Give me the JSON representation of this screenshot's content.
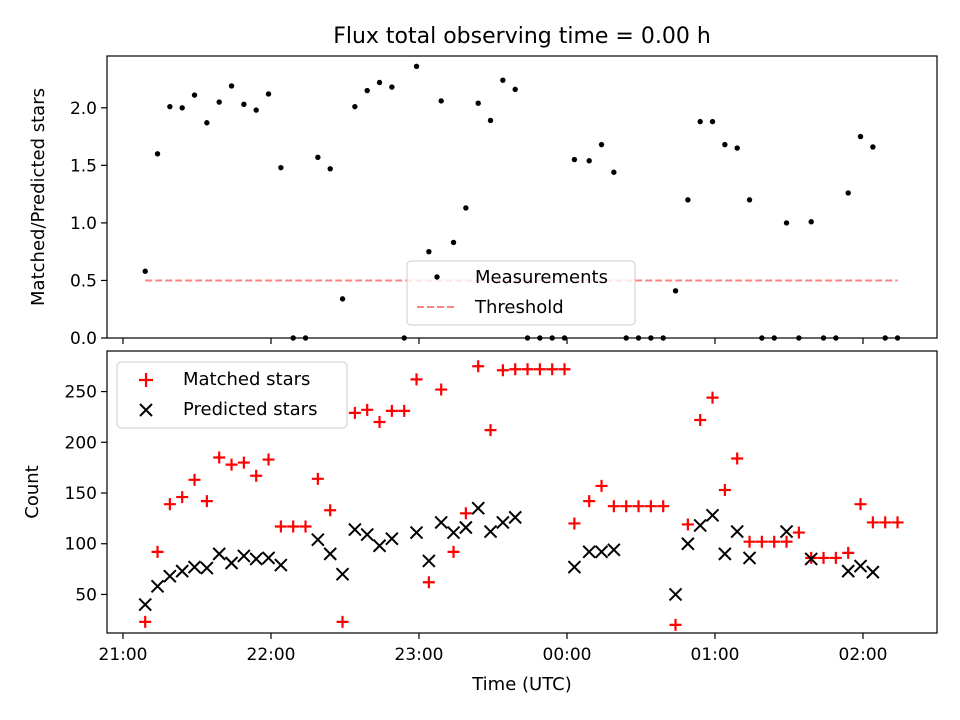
{
  "chart_data": [
    {
      "type": "scatter",
      "title": "Flux total observing time = 0.00 h",
      "xlabel": "",
      "ylabel": "Matched/Predicted stars",
      "xlim": [
        "21:00",
        "02:30"
      ],
      "ylim": [
        0,
        2.45
      ],
      "yticks": [
        0.0,
        0.5,
        1.0,
        1.5,
        2.0
      ],
      "ytick_labels": [
        "0.0",
        "0.5",
        "1.0",
        "1.5",
        "2.0"
      ],
      "grid": false,
      "legend_position": "lower-center",
      "series": [
        {
          "name": "Measurements",
          "marker": "dot",
          "color": "#000000",
          "points": [
            [
              "21:09",
              0.58
            ],
            [
              "21:14",
              1.6
            ],
            [
              "21:19",
              2.01
            ],
            [
              "21:24",
              2.0
            ],
            [
              "21:29",
              2.11
            ],
            [
              "21:34",
              1.87
            ],
            [
              "21:39",
              2.05
            ],
            [
              "21:44",
              2.19
            ],
            [
              "21:49",
              2.03
            ],
            [
              "21:54",
              1.98
            ],
            [
              "21:59",
              2.12
            ],
            [
              "22:04",
              1.48
            ],
            [
              "22:09",
              0.0
            ],
            [
              "22:14",
              0.0
            ],
            [
              "22:19",
              1.57
            ],
            [
              "22:24",
              1.47
            ],
            [
              "22:29",
              0.34
            ],
            [
              "22:34",
              2.01
            ],
            [
              "22:39",
              2.15
            ],
            [
              "22:44",
              2.22
            ],
            [
              "22:49",
              2.18
            ],
            [
              "22:54",
              0.0
            ],
            [
              "22:59",
              2.36
            ],
            [
              "23:04",
              0.75
            ],
            [
              "23:09",
              2.06
            ],
            [
              "23:14",
              0.83
            ],
            [
              "23:19",
              1.13
            ],
            [
              "23:24",
              2.04
            ],
            [
              "23:29",
              1.89
            ],
            [
              "23:34",
              2.24
            ],
            [
              "23:39",
              2.16
            ],
            [
              "23:44",
              0.0
            ],
            [
              "23:49",
              0.0
            ],
            [
              "23:54",
              0.0
            ],
            [
              "23:59",
              0.0
            ],
            [
              "00:03",
              1.55
            ],
            [
              "00:09",
              1.54
            ],
            [
              "00:14",
              1.68
            ],
            [
              "00:19",
              1.44
            ],
            [
              "00:24",
              0.0
            ],
            [
              "00:29",
              0.0
            ],
            [
              "00:34",
              0.0
            ],
            [
              "00:39",
              0.0
            ],
            [
              "00:44",
              0.41
            ],
            [
              "00:49",
              1.2
            ],
            [
              "00:54",
              1.88
            ],
            [
              "00:59",
              1.88
            ],
            [
              "01:04",
              1.68
            ],
            [
              "01:09",
              1.65
            ],
            [
              "01:14",
              1.2
            ],
            [
              "01:19",
              0.0
            ],
            [
              "01:24",
              0.0
            ],
            [
              "01:29",
              1.0
            ],
            [
              "01:34",
              0.0
            ],
            [
              "01:39",
              1.01
            ],
            [
              "01:44",
              0.0
            ],
            [
              "01:49",
              0.0
            ],
            [
              "01:54",
              1.26
            ],
            [
              "01:59",
              1.75
            ],
            [
              "02:04",
              1.66
            ],
            [
              "02:09",
              0.0
            ],
            [
              "02:14",
              0.0
            ]
          ]
        },
        {
          "name": "Threshold",
          "marker": "dashed-line",
          "color": "#ff8080",
          "points": [
            [
              "21:09",
              0.5
            ],
            [
              "02:14",
              0.5
            ]
          ]
        }
      ]
    },
    {
      "type": "scatter",
      "title": "",
      "xlabel": "Time (UTC)",
      "ylabel": "Count",
      "xlim": [
        "21:00",
        "02:30"
      ],
      "ylim": [
        12,
        290
      ],
      "yticks": [
        50,
        100,
        150,
        200,
        250
      ],
      "ytick_labels": [
        "50",
        "100",
        "150",
        "200",
        "250"
      ],
      "xticks": [
        "21:00",
        "22:00",
        "23:00",
        "00:00",
        "01:00",
        "02:00"
      ],
      "xtick_labels": [
        "21:00",
        "22:00",
        "23:00",
        "00:00",
        "01:00",
        "02:00"
      ],
      "grid": false,
      "legend_position": "upper-left",
      "series": [
        {
          "name": "Matched stars",
          "marker": "plus",
          "color": "#ff0000",
          "points": [
            [
              "21:09",
              23
            ],
            [
              "21:14",
              92
            ],
            [
              "21:19",
              139
            ],
            [
              "21:24",
              146
            ],
            [
              "21:29",
              163
            ],
            [
              "21:34",
              142
            ],
            [
              "21:39",
              185
            ],
            [
              "21:44",
              178
            ],
            [
              "21:49",
              180
            ],
            [
              "21:54",
              167
            ],
            [
              "21:59",
              183
            ],
            [
              "22:04",
              117
            ],
            [
              "22:09",
              117
            ],
            [
              "22:14",
              117
            ],
            [
              "22:19",
              164
            ],
            [
              "22:24",
              133
            ],
            [
              "22:29",
              23
            ],
            [
              "22:34",
              229
            ],
            [
              "22:39",
              232
            ],
            [
              "22:44",
              220
            ],
            [
              "22:49",
              231
            ],
            [
              "22:54",
              231
            ],
            [
              "22:59",
              262
            ],
            [
              "23:04",
              62
            ],
            [
              "23:09",
              252
            ],
            [
              "23:14",
              92
            ],
            [
              "23:19",
              130
            ],
            [
              "23:24",
              275
            ],
            [
              "23:29",
              212
            ],
            [
              "23:34",
              271
            ],
            [
              "23:39",
              272
            ],
            [
              "23:44",
              272
            ],
            [
              "23:49",
              272
            ],
            [
              "23:54",
              272
            ],
            [
              "23:59",
              272
            ],
            [
              "00:03",
              120
            ],
            [
              "00:09",
              142
            ],
            [
              "00:14",
              157
            ],
            [
              "00:19",
              137
            ],
            [
              "00:24",
              137
            ],
            [
              "00:29",
              137
            ],
            [
              "00:34",
              137
            ],
            [
              "00:39",
              137
            ],
            [
              "00:44",
              20
            ],
            [
              "00:49",
              119
            ],
            [
              "00:54",
              222
            ],
            [
              "00:59",
              244
            ],
            [
              "01:04",
              153
            ],
            [
              "01:09",
              184
            ],
            [
              "01:14",
              102
            ],
            [
              "01:19",
              102
            ],
            [
              "01:24",
              102
            ],
            [
              "01:29",
              102
            ],
            [
              "01:34",
              111
            ],
            [
              "01:39",
              86
            ],
            [
              "01:44",
              86
            ],
            [
              "01:49",
              86
            ],
            [
              "01:54",
              91
            ],
            [
              "01:59",
              139
            ],
            [
              "02:04",
              121
            ],
            [
              "02:09",
              121
            ],
            [
              "02:14",
              121
            ]
          ]
        },
        {
          "name": "Predicted stars",
          "marker": "x",
          "color": "#000000",
          "points": [
            [
              "21:09",
              40
            ],
            [
              "21:14",
              58
            ],
            [
              "21:19",
              68
            ],
            [
              "21:24",
              73
            ],
            [
              "21:29",
              77
            ],
            [
              "21:34",
              76
            ],
            [
              "21:39",
              90
            ],
            [
              "21:44",
              81
            ],
            [
              "21:49",
              88
            ],
            [
              "21:54",
              85
            ],
            [
              "21:59",
              86
            ],
            [
              "22:04",
              79
            ],
            [
              "22:19",
              104
            ],
            [
              "22:24",
              90
            ],
            [
              "22:29",
              70
            ],
            [
              "22:34",
              114
            ],
            [
              "22:39",
              109
            ],
            [
              "22:44",
              98
            ],
            [
              "22:49",
              105
            ],
            [
              "22:59",
              111
            ],
            [
              "23:04",
              83
            ],
            [
              "23:09",
              121
            ],
            [
              "23:14",
              111
            ],
            [
              "23:19",
              116
            ],
            [
              "23:24",
              135
            ],
            [
              "23:29",
              112
            ],
            [
              "23:34",
              121
            ],
            [
              "23:39",
              126
            ],
            [
              "00:03",
              77
            ],
            [
              "00:09",
              92
            ],
            [
              "00:14",
              92
            ],
            [
              "00:19",
              94
            ],
            [
              "00:44",
              50
            ],
            [
              "00:49",
              100
            ],
            [
              "00:54",
              118
            ],
            [
              "00:59",
              128
            ],
            [
              "01:04",
              90
            ],
            [
              "01:09",
              112
            ],
            [
              "01:14",
              86
            ],
            [
              "01:29",
              112
            ],
            [
              "01:39",
              85
            ],
            [
              "01:54",
              73
            ],
            [
              "01:59",
              78
            ],
            [
              "02:04",
              72
            ]
          ]
        }
      ]
    }
  ]
}
